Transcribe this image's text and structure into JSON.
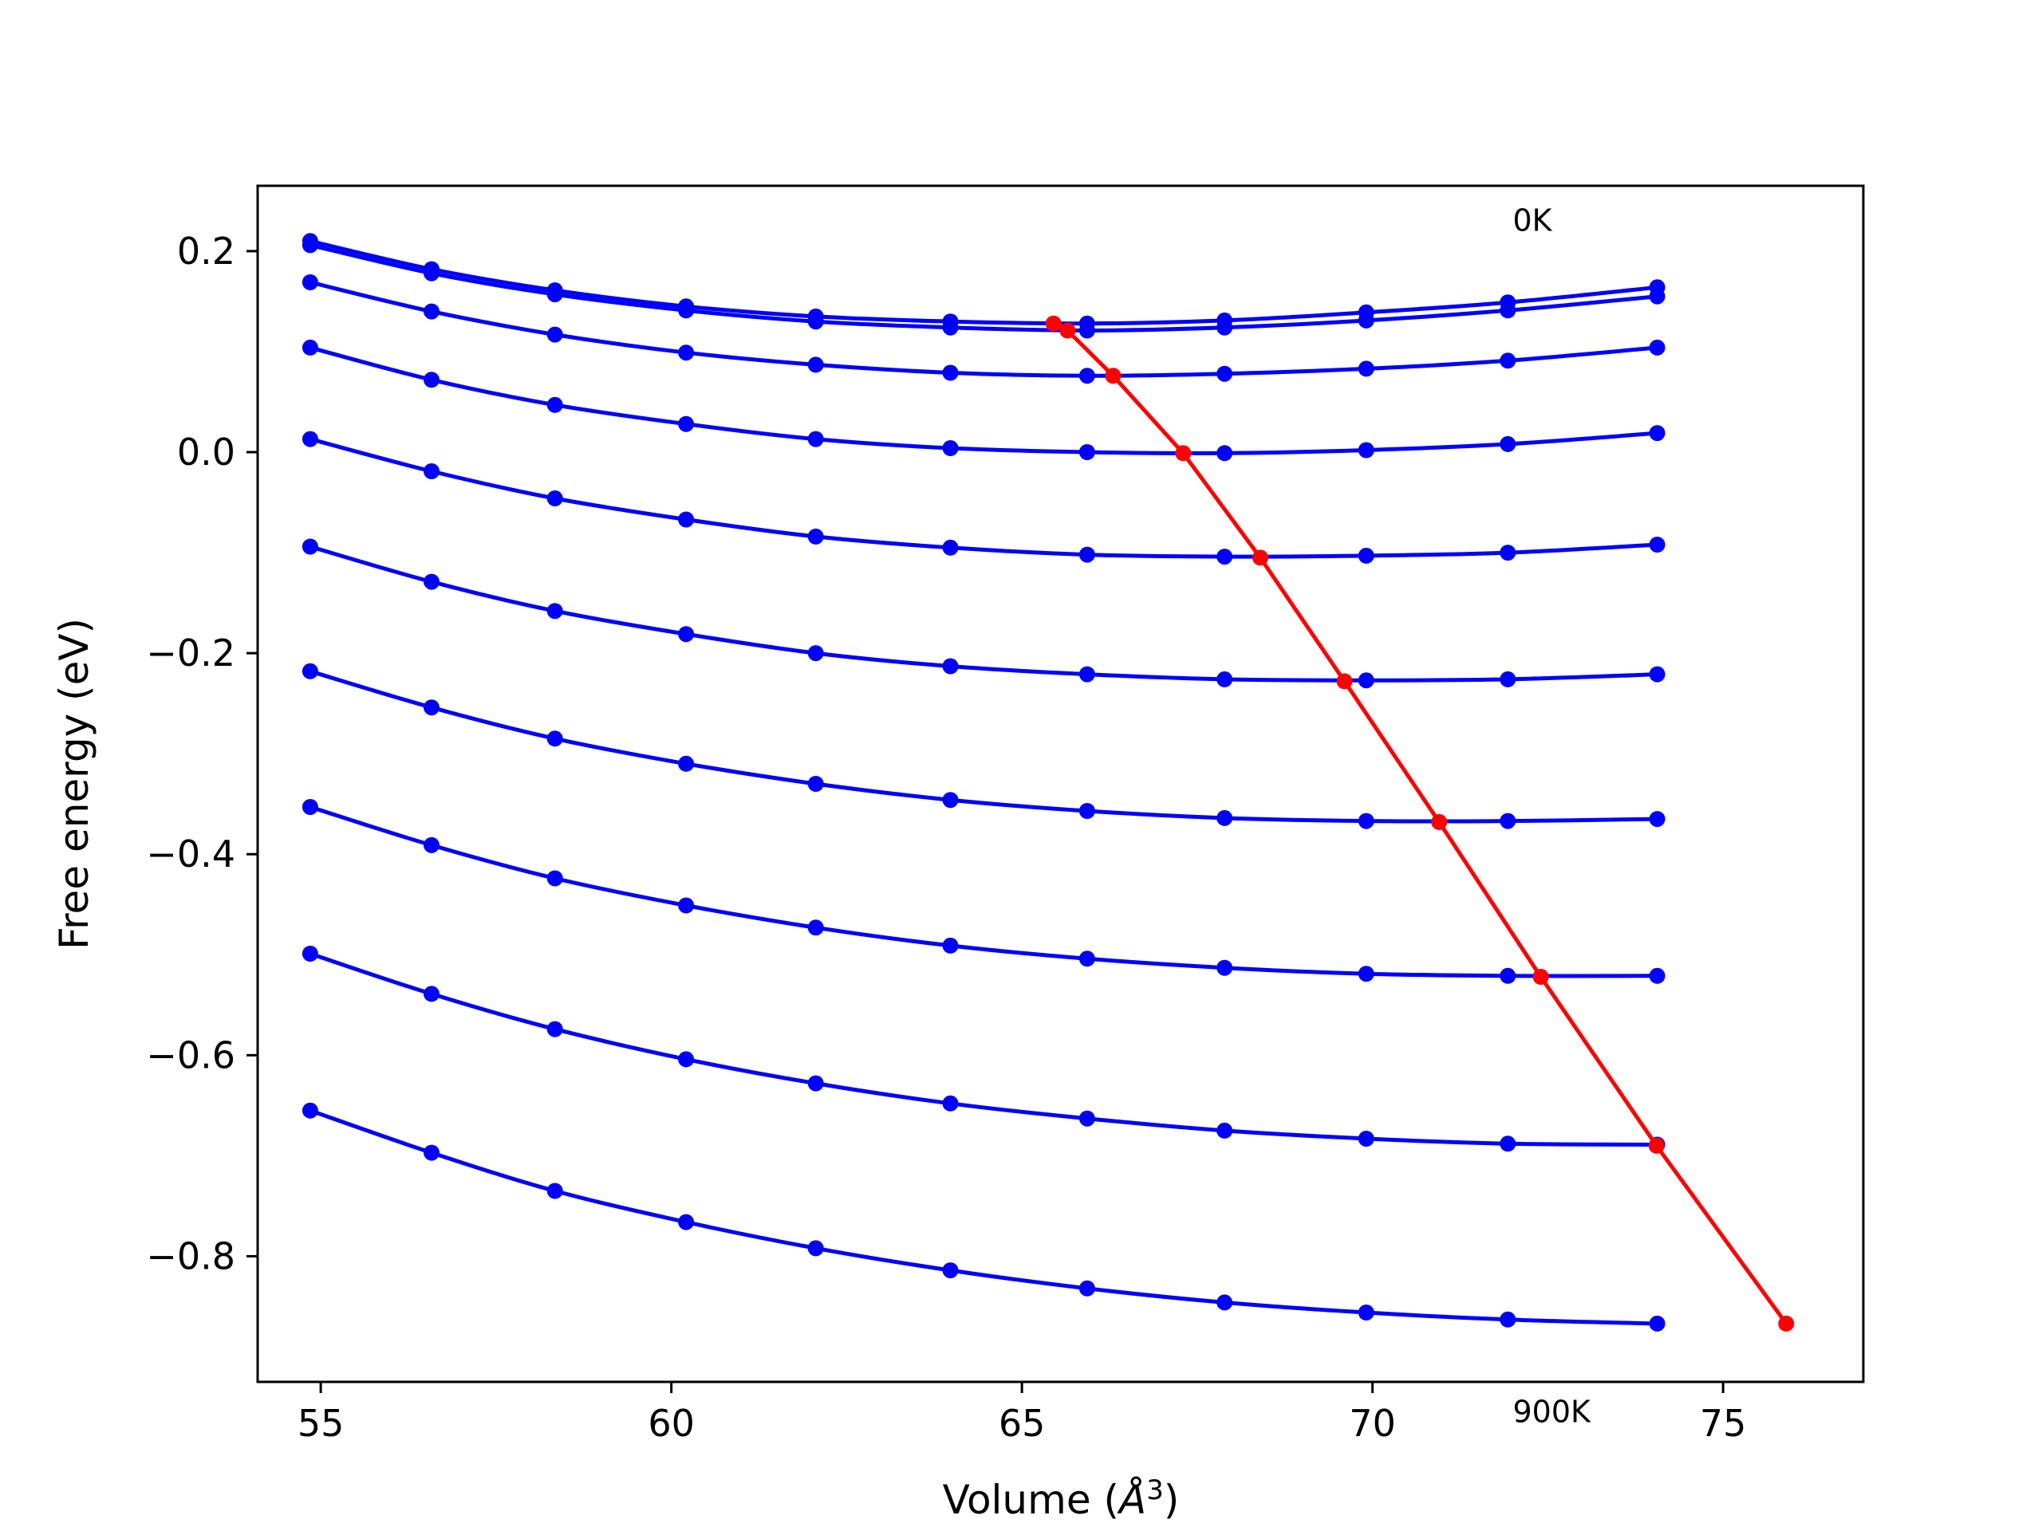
{
  "chart_data": {
    "type": "line",
    "title": "",
    "xlabel": "Volume (",
    "xlabel_symbol": "Å",
    "xlabel_exp": "3",
    "xlabel_close": ")",
    "ylabel": "Free energy (eV)",
    "xlim": [
      54.1,
      77.0
    ],
    "ylim": [
      -0.925,
      0.265
    ],
    "xticks": [
      55,
      60,
      65,
      70,
      75
    ],
    "xtick_labels": [
      "55",
      "60",
      "65",
      "70",
      "75"
    ],
    "yticks": [
      0.2,
      0.0,
      -0.2,
      -0.4,
      -0.6,
      -0.8
    ],
    "ytick_labels": [
      "0.2",
      "0.0",
      "−0.2",
      "−0.4",
      "−0.6",
      "−0.8"
    ],
    "grid": false,
    "annotations": [
      {
        "text": "0K",
        "x": 72.0,
        "y": 0.22
      },
      {
        "text": "900K",
        "x": 72.0,
        "y": -0.965
      }
    ],
    "x": [
      54.85,
      56.58,
      58.34,
      60.21,
      62.06,
      63.98,
      65.93,
      67.89,
      69.91,
      71.93,
      74.06
    ],
    "series": [
      {
        "color": "#0000ff",
        "values": [
          0.21,
          0.182,
          0.161,
          0.145,
          0.135,
          0.13,
          0.128,
          0.131,
          0.139,
          0.149,
          0.164
        ]
      },
      {
        "color": "#0000ff",
        "values": [
          0.206,
          0.178,
          0.157,
          0.141,
          0.13,
          0.124,
          0.121,
          0.124,
          0.131,
          0.141,
          0.155
        ]
      },
      {
        "color": "#0000ff",
        "values": [
          0.169,
          0.14,
          0.117,
          0.099,
          0.087,
          0.079,
          0.076,
          0.078,
          0.083,
          0.091,
          0.104
        ]
      },
      {
        "color": "#0000ff",
        "values": [
          0.104,
          0.072,
          0.047,
          0.028,
          0.013,
          0.004,
          0.0,
          -0.001,
          0.002,
          0.008,
          0.019
        ]
      },
      {
        "color": "#0000ff",
        "values": [
          0.013,
          -0.019,
          -0.046,
          -0.067,
          -0.084,
          -0.095,
          -0.102,
          -0.104,
          -0.103,
          -0.1,
          -0.092
        ]
      },
      {
        "color": "#0000ff",
        "values": [
          -0.094,
          -0.129,
          -0.158,
          -0.181,
          -0.2,
          -0.213,
          -0.221,
          -0.226,
          -0.227,
          -0.226,
          -0.221
        ]
      },
      {
        "color": "#0000ff",
        "values": [
          -0.218,
          -0.254,
          -0.285,
          -0.31,
          -0.33,
          -0.346,
          -0.357,
          -0.364,
          -0.367,
          -0.367,
          -0.365
        ]
      },
      {
        "color": "#0000ff",
        "values": [
          -0.353,
          -0.391,
          -0.424,
          -0.451,
          -0.473,
          -0.491,
          -0.504,
          -0.513,
          -0.519,
          -0.521,
          -0.521
        ]
      },
      {
        "color": "#0000ff",
        "values": [
          -0.499,
          -0.539,
          -0.574,
          -0.604,
          -0.628,
          -0.648,
          -0.663,
          -0.675,
          -0.683,
          -0.688,
          -0.689
        ]
      },
      {
        "color": "#0000ff",
        "values": [
          -0.655,
          -0.697,
          -0.735,
          -0.766,
          -0.792,
          -0.814,
          -0.832,
          -0.846,
          -0.856,
          -0.863,
          -0.867
        ]
      }
    ],
    "minima_line": {
      "color": "#ff0000",
      "x": [
        65.45,
        65.65,
        66.3,
        67.3,
        68.4,
        69.6,
        70.95,
        72.4,
        74.05,
        75.9
      ],
      "y": [
        0.128,
        0.121,
        0.076,
        -0.001,
        -0.105,
        -0.228,
        -0.368,
        -0.522,
        -0.69,
        -0.867
      ]
    }
  }
}
